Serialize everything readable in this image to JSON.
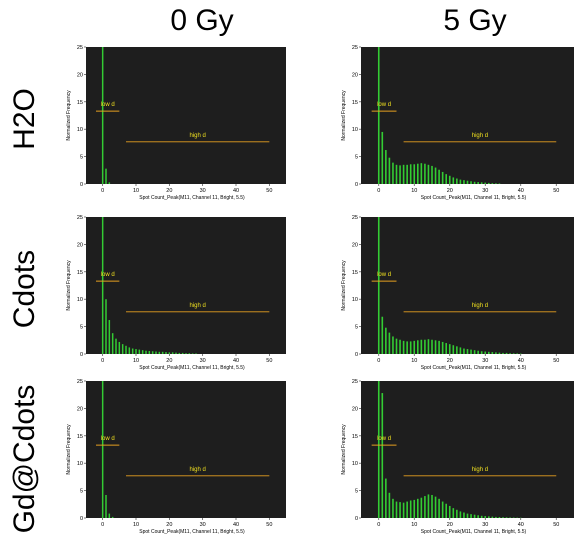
{
  "columns": [
    "0 Gy",
    "5 Gy"
  ],
  "rows": [
    "H2O",
    "Cdots",
    "Gd@Cdots"
  ],
  "colors": {
    "plot_bg": "#1e1e1e",
    "bar": "#33cc33",
    "gate": "#e6a020",
    "gate_label": "#f0e020",
    "axis_text": "#000000"
  },
  "chart_data": [
    {
      "type": "bar",
      "row": "H2O",
      "column": "0 Gy",
      "xlabel": "Spot Count_Peak(M11, Channel 11, Bright, 5.5)",
      "ylabel": "Normalized Frequency",
      "xlim": [
        -5,
        55
      ],
      "ylim": [
        0,
        25
      ],
      "xticks": [
        0,
        10,
        20,
        30,
        40,
        50
      ],
      "yticks": [
        0,
        5,
        10,
        15,
        20,
        25
      ],
      "x": [
        0,
        1,
        2
      ],
      "values": [
        25,
        2.8,
        0.3
      ],
      "gates": [
        {
          "label": "low d",
          "range": [
            -2,
            5
          ],
          "y": 13.3
        },
        {
          "label": "high d",
          "range": [
            7,
            50
          ],
          "y": 7.7
        }
      ]
    },
    {
      "type": "bar",
      "row": "H2O",
      "column": "5 Gy",
      "xlabel": "Spot Count_Peak(M11, Channel 11, Bright, 5.5)",
      "ylabel": "Normalized Frequency",
      "xlim": [
        -5,
        55
      ],
      "ylim": [
        0,
        25
      ],
      "xticks": [
        0,
        10,
        20,
        30,
        40,
        50
      ],
      "yticks": [
        0,
        5,
        10,
        15,
        20,
        25
      ],
      "x": [
        0,
        1,
        2,
        3,
        4,
        5,
        6,
        7,
        8,
        9,
        10,
        11,
        12,
        13,
        14,
        15,
        16,
        17,
        18,
        19,
        20,
        21,
        22,
        23,
        24,
        25,
        26,
        27,
        28,
        29,
        30,
        31,
        32,
        33,
        34
      ],
      "values": [
        25,
        9.5,
        6.2,
        4.8,
        3.9,
        3.5,
        3.4,
        3.5,
        3.5,
        3.6,
        3.6,
        3.7,
        3.8,
        3.7,
        3.5,
        3.3,
        3.0,
        2.6,
        2.2,
        1.8,
        1.5,
        1.2,
        1.0,
        0.8,
        0.7,
        0.6,
        0.5,
        0.4,
        0.35,
        0.3,
        0.25,
        0.2,
        0.15,
        0.12,
        0.1
      ],
      "gates": [
        {
          "label": "low d",
          "range": [
            -2,
            5
          ],
          "y": 13.3
        },
        {
          "label": "high d",
          "range": [
            7,
            50
          ],
          "y": 7.7
        }
      ]
    },
    {
      "type": "bar",
      "row": "Cdots",
      "column": "0 Gy",
      "xlabel": "Spot Count_Peak(M11, Channel 11, Bright, 5.5)",
      "ylabel": "Normalized Frequency",
      "xlim": [
        -5,
        55
      ],
      "ylim": [
        0,
        25
      ],
      "xticks": [
        0,
        10,
        20,
        30,
        40,
        50
      ],
      "yticks": [
        0,
        5,
        10,
        15,
        20,
        25
      ],
      "x": [
        0,
        1,
        2,
        3,
        4,
        5,
        6,
        7,
        8,
        9,
        10,
        11,
        12,
        13,
        14,
        15,
        16,
        17,
        18,
        19,
        20,
        21,
        22,
        23,
        24,
        25,
        26,
        27,
        28
      ],
      "values": [
        25,
        10.0,
        6.2,
        3.8,
        2.8,
        2.2,
        1.8,
        1.5,
        1.2,
        1.0,
        0.9,
        0.8,
        0.7,
        0.6,
        0.55,
        0.5,
        0.45,
        0.4,
        0.4,
        0.35,
        0.3,
        0.3,
        0.25,
        0.2,
        0.2,
        0.15,
        0.15,
        0.1,
        0.1
      ],
      "gates": [
        {
          "label": "low d",
          "range": [
            -2,
            5
          ],
          "y": 13.3
        },
        {
          "label": "high d",
          "range": [
            7,
            50
          ],
          "y": 7.7
        }
      ]
    },
    {
      "type": "bar",
      "row": "Cdots",
      "column": "5 Gy",
      "xlabel": "Spot Count_Peak(M11, Channel 11, Bright, 5.5)",
      "ylabel": "Normalized Frequency",
      "xlim": [
        -5,
        55
      ],
      "ylim": [
        0,
        25
      ],
      "xticks": [
        0,
        10,
        20,
        30,
        40,
        50
      ],
      "yticks": [
        0,
        5,
        10,
        15,
        20,
        25
      ],
      "x": [
        0,
        1,
        2,
        3,
        4,
        5,
        6,
        7,
        8,
        9,
        10,
        11,
        12,
        13,
        14,
        15,
        16,
        17,
        18,
        19,
        20,
        21,
        22,
        23,
        24,
        25,
        26,
        27,
        28,
        29,
        30,
        31,
        32,
        33,
        34,
        35,
        36,
        37,
        38,
        39,
        40
      ],
      "values": [
        25,
        6.8,
        4.8,
        3.9,
        3.2,
        2.8,
        2.6,
        2.4,
        2.3,
        2.3,
        2.4,
        2.5,
        2.6,
        2.6,
        2.7,
        2.6,
        2.5,
        2.4,
        2.2,
        2.0,
        1.8,
        1.6,
        1.4,
        1.2,
        1.0,
        0.9,
        0.8,
        0.7,
        0.6,
        0.5,
        0.45,
        0.4,
        0.35,
        0.3,
        0.25,
        0.2,
        0.2,
        0.15,
        0.12,
        0.1,
        0.08
      ],
      "gates": [
        {
          "label": "low d",
          "range": [
            -2,
            5
          ],
          "y": 13.3
        },
        {
          "label": "high d",
          "range": [
            7,
            50
          ],
          "y": 7.7
        }
      ]
    },
    {
      "type": "bar",
      "row": "Gd@Cdots",
      "column": "0 Gy",
      "xlabel": "Spot Count_Peak(M11, Channel 11, Bright, 5.5)",
      "ylabel": "Normalized Frequency",
      "xlim": [
        -5,
        55
      ],
      "ylim": [
        0,
        25
      ],
      "xticks": [
        0,
        10,
        20,
        30,
        40,
        50
      ],
      "yticks": [
        0,
        5,
        10,
        15,
        20,
        25
      ],
      "x": [
        0,
        1,
        2,
        3
      ],
      "values": [
        25,
        4.2,
        0.8,
        0.2
      ],
      "gates": [
        {
          "label": "low d",
          "range": [
            -2,
            5
          ],
          "y": 13.3
        },
        {
          "label": "high d",
          "range": [
            7,
            50
          ],
          "y": 7.7
        }
      ]
    },
    {
      "type": "bar",
      "row": "Gd@Cdots",
      "column": "5 Gy",
      "xlabel": "Spot Count_Peak(M11, Channel 11, Bright, 5.5)",
      "ylabel": "Normalized Frequency",
      "xlim": [
        -5,
        55
      ],
      "ylim": [
        0,
        25
      ],
      "xticks": [
        0,
        10,
        20,
        30,
        40,
        50
      ],
      "yticks": [
        0,
        5,
        10,
        15,
        20,
        25
      ],
      "x": [
        0,
        1,
        2,
        3,
        4,
        5,
        6,
        7,
        8,
        9,
        10,
        11,
        12,
        13,
        14,
        15,
        16,
        17,
        18,
        19,
        20,
        21,
        22,
        23,
        24,
        25,
        26,
        27,
        28,
        29,
        30,
        31,
        32,
        33,
        34,
        35,
        36,
        37,
        38,
        39,
        40
      ],
      "values": [
        25,
        22.8,
        7.2,
        4.6,
        3.5,
        3.0,
        2.9,
        2.8,
        3.0,
        3.2,
        3.3,
        3.5,
        3.7,
        4.0,
        4.3,
        4.2,
        3.9,
        3.5,
        3.0,
        2.6,
        2.2,
        1.8,
        1.5,
        1.2,
        1.0,
        0.8,
        0.7,
        0.6,
        0.5,
        0.4,
        0.35,
        0.3,
        0.25,
        0.2,
        0.18,
        0.15,
        0.12,
        0.1,
        0.08,
        0.06,
        0.05
      ],
      "gates": [
        {
          "label": "low d",
          "range": [
            -2,
            5
          ],
          "y": 13.3
        },
        {
          "label": "high d",
          "range": [
            7,
            50
          ],
          "y": 7.7
        }
      ]
    }
  ]
}
